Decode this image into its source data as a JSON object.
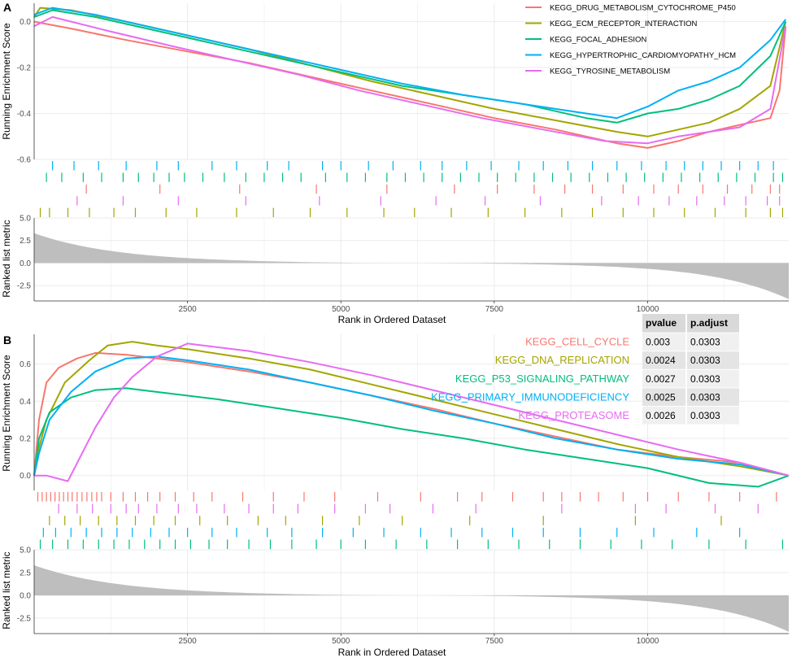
{
  "colors": [
    "#F8766D",
    "#A3A500",
    "#00BF7D",
    "#00B0F6",
    "#E76BF3"
  ],
  "chart_data": [
    {
      "panel": "A",
      "type": "line",
      "ylabel": "Running Enrichment Score",
      "xlabel": "Rank in Ordered Dataset",
      "xlim": [
        0,
        12300
      ],
      "ylim": [
        -0.6,
        0.08
      ],
      "y_ticks": [
        "0.0",
        "-0.2",
        "-0.4",
        "-0.6"
      ],
      "x_ticks": [
        "2500",
        "5000",
        "7500",
        "10000"
      ],
      "legend_position": "top-right",
      "series": [
        {
          "name": "KEGG_DRUG_METABOLISM_CYTOCHROME_P450",
          "x": [
            0,
            600,
            1500,
            2500,
            3500,
            4500,
            5500,
            6500,
            7500,
            8500,
            9000,
            9500,
            10000,
            10500,
            11000,
            11500,
            12000,
            12150,
            12250
          ],
          "y": [
            0.0,
            -0.03,
            -0.08,
            -0.13,
            -0.18,
            -0.24,
            -0.3,
            -0.36,
            -0.42,
            -0.47,
            -0.5,
            -0.53,
            -0.55,
            -0.52,
            -0.48,
            -0.45,
            -0.42,
            -0.3,
            -0.02
          ]
        },
        {
          "name": "KEGG_ECM_RECEPTOR_INTERACTION",
          "x": [
            0,
            100,
            600,
            1500,
            2500,
            3500,
            4500,
            5500,
            6500,
            7500,
            8500,
            9500,
            10000,
            10500,
            11000,
            11500,
            12000,
            12250
          ],
          "y": [
            0.02,
            0.06,
            0.05,
            0.0,
            -0.06,
            -0.12,
            -0.19,
            -0.26,
            -0.32,
            -0.38,
            -0.43,
            -0.48,
            -0.5,
            -0.47,
            -0.44,
            -0.38,
            -0.28,
            0.0
          ]
        },
        {
          "name": "KEGG_FOCAL_ADHESION",
          "x": [
            0,
            300,
            1000,
            2000,
            3000,
            4000,
            5000,
            6000,
            7000,
            8000,
            9000,
            9500,
            10000,
            10500,
            11000,
            11500,
            12000,
            12250
          ],
          "y": [
            0.02,
            0.05,
            0.02,
            -0.04,
            -0.1,
            -0.16,
            -0.22,
            -0.28,
            -0.32,
            -0.36,
            -0.42,
            -0.44,
            -0.4,
            -0.38,
            -0.34,
            -0.28,
            -0.15,
            0.0
          ]
        },
        {
          "name": "KEGG_HYPERTROPHIC_CARDIOMYOPATHY_HCM",
          "x": [
            0,
            300,
            1000,
            2000,
            3000,
            4000,
            5000,
            6000,
            7000,
            8000,
            9000,
            9500,
            10000,
            10500,
            11000,
            11500,
            12000,
            12250
          ],
          "y": [
            0.03,
            0.06,
            0.03,
            -0.03,
            -0.09,
            -0.15,
            -0.21,
            -0.27,
            -0.32,
            -0.36,
            -0.4,
            -0.42,
            -0.37,
            -0.3,
            -0.26,
            -0.2,
            -0.08,
            0.01
          ]
        },
        {
          "name": "KEGG_TYROSINE_METABOLISM",
          "x": [
            0,
            300,
            1200,
            2300,
            3300,
            4300,
            5300,
            6300,
            7300,
            8300,
            9300,
            10000,
            10500,
            11000,
            11500,
            12000,
            12250
          ],
          "y": [
            -0.02,
            0.02,
            -0.04,
            -0.11,
            -0.17,
            -0.23,
            -0.3,
            -0.36,
            -0.42,
            -0.47,
            -0.52,
            -0.53,
            -0.5,
            -0.48,
            -0.46,
            -0.38,
            -0.02
          ]
        }
      ],
      "hits": [
        {
          "series": 3,
          "positions": [
            300,
            650,
            1050,
            1500,
            2000,
            2350,
            2900,
            3300,
            3800,
            4150,
            4700,
            5000,
            5450,
            5850,
            6300,
            6650,
            7050,
            7450,
            7900,
            8300,
            8700,
            9100,
            9500,
            9900,
            10300,
            10600,
            10900,
            11200,
            11500,
            11800,
            12050
          ]
        },
        {
          "series": 2,
          "positions": [
            200,
            450,
            800,
            1100,
            1450,
            1700,
            1950,
            2200,
            2450,
            2750,
            3100,
            3450,
            3750,
            4050,
            4350,
            4750,
            5100,
            5400,
            5750,
            6050,
            6350,
            6650,
            6950,
            7250,
            7550,
            7850,
            8150,
            8450,
            8750,
            9050,
            9350,
            9650,
            9950,
            10250,
            10550,
            10850,
            11150,
            11450,
            11750,
            12050,
            12200
          ]
        },
        {
          "series": 0,
          "positions": [
            850,
            2050,
            3350,
            4600,
            5750,
            6850,
            7550,
            8150,
            8650,
            9100,
            9600,
            10100,
            10500,
            10900,
            11300,
            11700,
            12000,
            12150
          ]
        },
        {
          "series": 4,
          "positions": [
            700,
            1450,
            2350,
            3450,
            4650,
            5650,
            6550,
            7350,
            8250,
            9250,
            9850,
            10350,
            10800,
            11250,
            11600,
            11950,
            12150
          ]
        },
        {
          "series": 1,
          "positions": [
            100,
            250,
            550,
            900,
            1300,
            1650,
            2150,
            2650,
            3300,
            3900,
            4500,
            5100,
            5700,
            6200,
            6800,
            7400,
            8000,
            8600,
            9100,
            9600,
            10100,
            10600,
            11100,
            11600,
            12000,
            12200
          ]
        }
      ],
      "ranked_metric": {
        "ylabel": "Ranked list metric",
        "y_ticks": [
          "5.0",
          "2.5",
          "0.0",
          "-2.5"
        ],
        "ylim": [
          -4.2,
          5.0
        ],
        "start": 3.3,
        "end": -4.0
      }
    },
    {
      "panel": "B",
      "type": "line",
      "ylabel": "Running Enrichment Score",
      "xlabel": "Rank in Ordered Dataset",
      "xlim": [
        0,
        12300
      ],
      "ylim": [
        -0.08,
        0.76
      ],
      "y_ticks": [
        "0.6",
        "0.4",
        "0.2",
        "0.0"
      ],
      "x_ticks": [
        "2500",
        "5000",
        "7500",
        "10000"
      ],
      "series": [
        {
          "name": "KEGG_CELL_CYCLE",
          "x": [
            0,
            80,
            200,
            400,
            700,
            1000,
            1500,
            2000,
            2500,
            3500,
            4500,
            5500,
            6500,
            7500,
            8500,
            9500,
            10500,
            11500,
            12300
          ],
          "y": [
            0.0,
            0.3,
            0.5,
            0.58,
            0.63,
            0.66,
            0.65,
            0.63,
            0.61,
            0.56,
            0.5,
            0.43,
            0.36,
            0.28,
            0.21,
            0.14,
            0.1,
            0.07,
            0.0
          ]
        },
        {
          "name": "KEGG_DNA_REPLICATION",
          "x": [
            0,
            80,
            200,
            500,
            900,
            1200,
            1600,
            2000,
            2500,
            3500,
            4500,
            5500,
            6500,
            7500,
            8500,
            9500,
            10500,
            11500,
            12300
          ],
          "y": [
            0.0,
            0.15,
            0.3,
            0.5,
            0.62,
            0.7,
            0.72,
            0.7,
            0.68,
            0.63,
            0.57,
            0.49,
            0.41,
            0.33,
            0.25,
            0.17,
            0.1,
            0.05,
            0.0
          ]
        },
        {
          "name": "KEGG_P53_SIGNALING_PATHWAY",
          "x": [
            0,
            80,
            250,
            600,
            1000,
            1500,
            2000,
            3000,
            4000,
            5000,
            6000,
            7000,
            8000,
            9000,
            10000,
            11000,
            11800,
            12300
          ],
          "y": [
            0.0,
            0.2,
            0.34,
            0.42,
            0.46,
            0.47,
            0.45,
            0.41,
            0.36,
            0.31,
            0.25,
            0.2,
            0.14,
            0.09,
            0.04,
            -0.04,
            -0.06,
            0.0
          ]
        },
        {
          "name": "KEGG_PRIMARY_IMMUNODEFICIENCY",
          "x": [
            0,
            80,
            250,
            600,
            1000,
            1500,
            2000,
            2500,
            3500,
            4500,
            5500,
            6500,
            7500,
            8500,
            9500,
            10500,
            11500,
            12300
          ],
          "y": [
            0.0,
            0.12,
            0.3,
            0.45,
            0.56,
            0.63,
            0.64,
            0.62,
            0.57,
            0.5,
            0.43,
            0.35,
            0.28,
            0.2,
            0.14,
            0.09,
            0.06,
            0.0
          ]
        },
        {
          "name": "KEGG_PROTEASOME",
          "x": [
            0,
            200,
            550,
            750,
            1000,
            1300,
            1600,
            2000,
            2500,
            3500,
            4500,
            5500,
            6500,
            7500,
            8500,
            9500,
            10500,
            11500,
            12300
          ],
          "y": [
            0.0,
            0.0,
            -0.03,
            0.1,
            0.26,
            0.42,
            0.53,
            0.64,
            0.71,
            0.67,
            0.61,
            0.54,
            0.46,
            0.38,
            0.3,
            0.22,
            0.14,
            0.07,
            0.0
          ]
        }
      ],
      "hits": [
        {
          "series": 0,
          "positions": [
            60,
            130,
            200,
            270,
            340,
            410,
            480,
            550,
            620,
            700,
            780,
            860,
            940,
            1020,
            1100,
            1250,
            1450,
            1650,
            1850,
            2050,
            2300,
            2600,
            2900,
            3400,
            3900,
            4400,
            4900,
            5600,
            6300,
            6900,
            7300,
            7800,
            8300,
            8600,
            8900,
            9200,
            9600,
            10000,
            10500,
            11000,
            11500,
            12100
          ]
        },
        {
          "series": 4,
          "positions": [
            400,
            700,
            950,
            1250,
            1500,
            1700,
            2000,
            2350,
            2650,
            3100,
            3500,
            3900,
            4300,
            4900,
            5400,
            5800,
            6500,
            7200,
            8600,
            9800,
            10300,
            11100,
            11800
          ]
        },
        {
          "series": 1,
          "positions": [
            250,
            500,
            750,
            1050,
            1350,
            1650,
            1950,
            2300,
            2700,
            3150,
            3650,
            4100,
            4700,
            5300,
            6000,
            7100,
            8300,
            9800,
            11200
          ]
        },
        {
          "series": 3,
          "positions": [
            150,
            350,
            600,
            850,
            1100,
            1350,
            1600,
            1900,
            2200,
            2500,
            2900,
            3300,
            3800,
            4200,
            4700,
            5200,
            5700,
            6300,
            6800,
            7300,
            7800,
            8300,
            8900,
            9500,
            10100,
            10800,
            11500
          ]
        },
        {
          "series": 2,
          "positions": [
            100,
            300,
            550,
            800,
            1050,
            1300,
            1550,
            1800,
            2050,
            2300,
            2550,
            2850,
            3150,
            3500,
            3850,
            4200,
            4600,
            5000,
            5400,
            5900,
            6400,
            6900,
            7400,
            7900,
            8400,
            8900,
            9400,
            9900,
            10400,
            11000,
            11600,
            12200
          ]
        }
      ],
      "ranked_metric": {
        "ylabel": "Ranked list metric",
        "y_ticks": [
          "5.0",
          "2.5",
          "0.0",
          "-2.5"
        ],
        "ylim": [
          -4.2,
          5.0
        ],
        "start": 3.3,
        "end": -4.0
      },
      "table": {
        "headers": [
          "pvalue",
          "p.adjust"
        ],
        "rows": [
          {
            "name": "KEGG_CELL_CYCLE",
            "pvalue": "0.003",
            "padjust": "0.0303"
          },
          {
            "name": "KEGG_DNA_REPLICATION",
            "pvalue": "0.0024",
            "padjust": "0.0303"
          },
          {
            "name": "KEGG_P53_SIGNALING_PATHWAY",
            "pvalue": "0.0027",
            "padjust": "0.0303"
          },
          {
            "name": "KEGG_PRIMARY_IMMUNODEFICIENCY",
            "pvalue": "0.0025",
            "padjust": "0.0303"
          },
          {
            "name": "KEGG_PROTEASOME",
            "pvalue": "0.0026",
            "padjust": "0.0303"
          }
        ]
      }
    }
  ]
}
